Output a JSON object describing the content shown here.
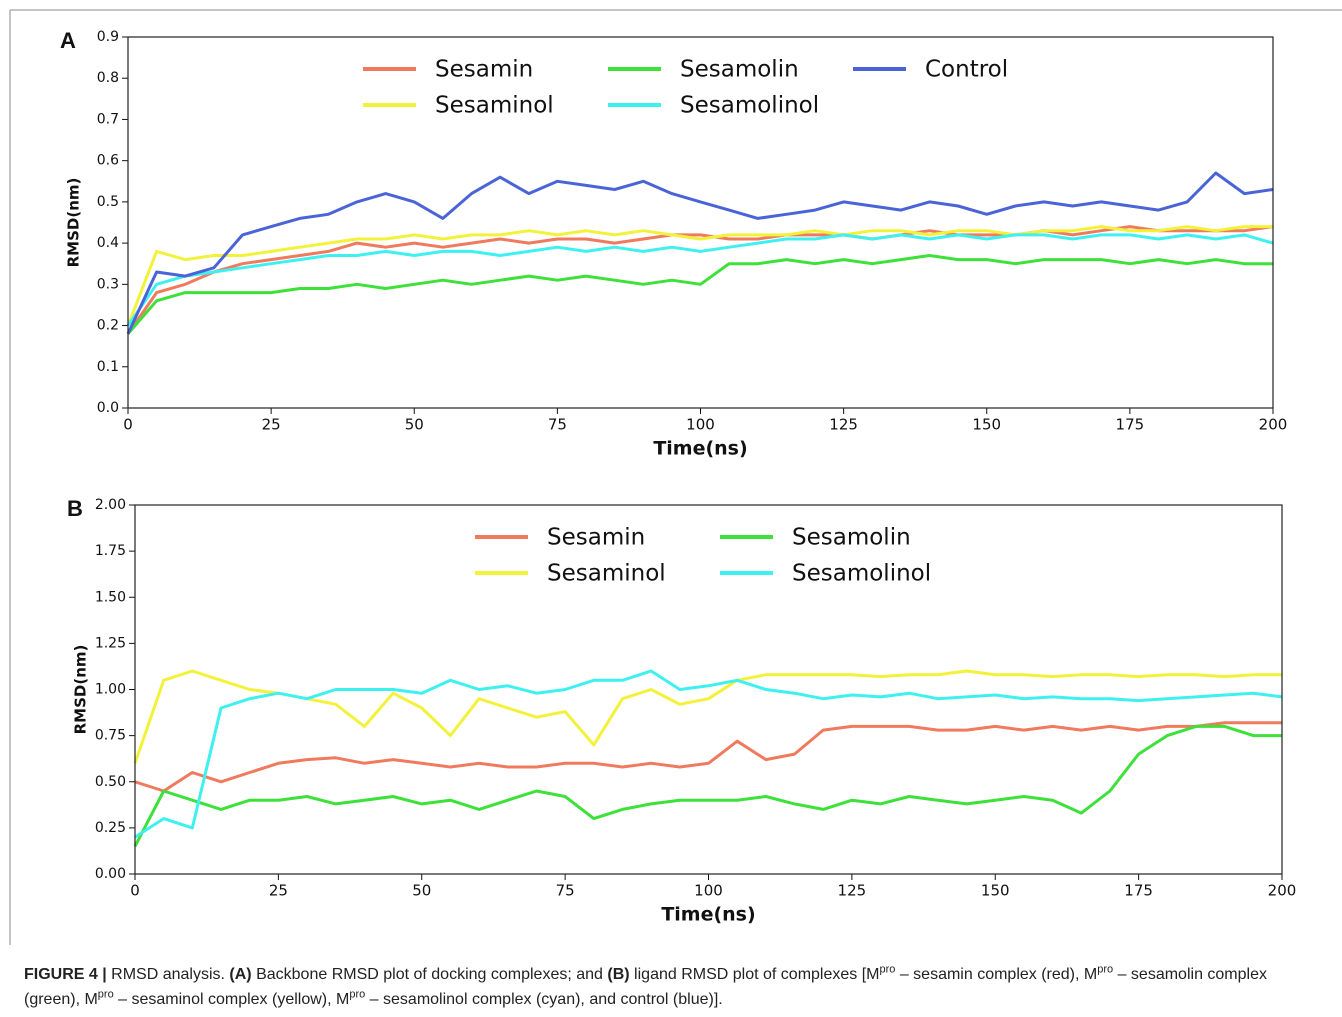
{
  "chart_data": [
    {
      "type": "line",
      "panel_label": "A",
      "xlabel": "Time(ns)",
      "ylabel": "RMSD(nm)",
      "xlim": [
        0,
        200
      ],
      "xticks": [
        0,
        25,
        50,
        75,
        100,
        125,
        150,
        175,
        200
      ],
      "ylim": [
        0,
        0.9
      ],
      "yticks": [
        {
          "value": 0,
          "label": "0.0"
        },
        0.1,
        0.2,
        0.3,
        0.4,
        0.5,
        0.6,
        0.7,
        0.8,
        0.9
      ],
      "legend_loc": "upper center",
      "legend_columns": 3,
      "x": [
        0,
        5,
        10,
        15,
        20,
        25,
        30,
        35,
        40,
        45,
        50,
        55,
        60,
        65,
        70,
        75,
        80,
        85,
        90,
        95,
        100,
        105,
        110,
        115,
        120,
        125,
        130,
        135,
        140,
        145,
        150,
        155,
        160,
        165,
        170,
        175,
        180,
        185,
        190,
        195,
        200
      ],
      "series": [
        {
          "name": "Sesamin",
          "color": "#f07a5e",
          "values": [
            0.18,
            0.28,
            0.3,
            0.33,
            0.35,
            0.36,
            0.37,
            0.38,
            0.4,
            0.39,
            0.4,
            0.39,
            0.4,
            0.41,
            0.4,
            0.41,
            0.41,
            0.4,
            0.41,
            0.42,
            0.42,
            0.41,
            0.41,
            0.42,
            0.42,
            0.42,
            0.41,
            0.42,
            0.43,
            0.42,
            0.42,
            0.42,
            0.43,
            0.42,
            0.43,
            0.44,
            0.43,
            0.43,
            0.43,
            0.43,
            0.44
          ]
        },
        {
          "name": "Sesaminol",
          "color": "#f2f23a",
          "values": [
            0.2,
            0.38,
            0.36,
            0.37,
            0.37,
            0.38,
            0.39,
            0.4,
            0.41,
            0.41,
            0.42,
            0.41,
            0.42,
            0.42,
            0.43,
            0.42,
            0.43,
            0.42,
            0.43,
            0.42,
            0.41,
            0.42,
            0.42,
            0.42,
            0.43,
            0.42,
            0.43,
            0.43,
            0.42,
            0.43,
            0.43,
            0.42,
            0.43,
            0.43,
            0.44,
            0.43,
            0.43,
            0.44,
            0.43,
            0.44,
            0.44
          ]
        },
        {
          "name": "Sesamolin",
          "color": "#3ee03a",
          "values": [
            0.18,
            0.26,
            0.28,
            0.28,
            0.28,
            0.28,
            0.29,
            0.29,
            0.3,
            0.29,
            0.3,
            0.31,
            0.3,
            0.31,
            0.32,
            0.31,
            0.32,
            0.31,
            0.3,
            0.31,
            0.3,
            0.35,
            0.35,
            0.36,
            0.35,
            0.36,
            0.35,
            0.36,
            0.37,
            0.36,
            0.36,
            0.35,
            0.36,
            0.36,
            0.36,
            0.35,
            0.36,
            0.35,
            0.36,
            0.35,
            0.35
          ]
        },
        {
          "name": "Sesamolinol",
          "color": "#3ef0f0",
          "values": [
            0.2,
            0.3,
            0.32,
            0.33,
            0.34,
            0.35,
            0.36,
            0.37,
            0.37,
            0.38,
            0.37,
            0.38,
            0.38,
            0.37,
            0.38,
            0.39,
            0.38,
            0.39,
            0.38,
            0.39,
            0.38,
            0.39,
            0.4,
            0.41,
            0.41,
            0.42,
            0.41,
            0.42,
            0.41,
            0.42,
            0.41,
            0.42,
            0.42,
            0.41,
            0.42,
            0.42,
            0.41,
            0.42,
            0.41,
            0.42,
            0.4
          ]
        },
        {
          "name": "Control",
          "color": "#4a64d8",
          "values": [
            0.18,
            0.33,
            0.32,
            0.34,
            0.42,
            0.44,
            0.46,
            0.47,
            0.5,
            0.52,
            0.5,
            0.46,
            0.52,
            0.56,
            0.52,
            0.55,
            0.54,
            0.53,
            0.55,
            0.52,
            0.5,
            0.48,
            0.46,
            0.47,
            0.48,
            0.5,
            0.49,
            0.48,
            0.5,
            0.49,
            0.47,
            0.49,
            0.5,
            0.49,
            0.5,
            0.49,
            0.48,
            0.5,
            0.57,
            0.52,
            0.53
          ]
        }
      ]
    },
    {
      "type": "line",
      "panel_label": "B",
      "xlabel": "Time(ns)",
      "ylabel": "RMSD(nm)",
      "xlim": [
        0,
        200
      ],
      "xticks": [
        0,
        25,
        50,
        75,
        100,
        125,
        150,
        175,
        200
      ],
      "ylim": [
        0,
        2
      ],
      "yticks": [
        {
          "value": 0,
          "label": "0.00"
        },
        0.25,
        {
          "value": 0.5,
          "label": "0.50"
        },
        0.75,
        {
          "value": 1,
          "label": "1.00"
        },
        1.25,
        {
          "value": 1.5,
          "label": "1.50"
        },
        1.75,
        {
          "value": 2,
          "label": "2.00"
        }
      ],
      "legend_loc": "upper center",
      "legend_columns": 2,
      "x": [
        0,
        5,
        10,
        15,
        20,
        25,
        30,
        35,
        40,
        45,
        50,
        55,
        60,
        65,
        70,
        75,
        80,
        85,
        90,
        95,
        100,
        105,
        110,
        115,
        120,
        125,
        130,
        135,
        140,
        145,
        150,
        155,
        160,
        165,
        170,
        175,
        180,
        185,
        190,
        195,
        200
      ],
      "series": [
        {
          "name": "Sesamin",
          "color": "#f07a5e",
          "values": [
            0.5,
            0.45,
            0.55,
            0.5,
            0.55,
            0.6,
            0.62,
            0.63,
            0.6,
            0.62,
            0.6,
            0.58,
            0.6,
            0.58,
            0.58,
            0.6,
            0.6,
            0.58,
            0.6,
            0.58,
            0.6,
            0.72,
            0.62,
            0.65,
            0.78,
            0.8,
            0.8,
            0.8,
            0.78,
            0.78,
            0.8,
            0.78,
            0.8,
            0.78,
            0.8,
            0.78,
            0.8,
            0.8,
            0.82,
            0.82,
            0.82
          ]
        },
        {
          "name": "Sesaminol",
          "color": "#f2f23a",
          "values": [
            0.6,
            1.05,
            1.1,
            1.05,
            1.0,
            0.98,
            0.95,
            0.92,
            0.8,
            0.98,
            0.9,
            0.75,
            0.95,
            0.9,
            0.85,
            0.88,
            0.7,
            0.95,
            1.0,
            0.92,
            0.95,
            1.05,
            1.08,
            1.08,
            1.08,
            1.08,
            1.07,
            1.08,
            1.08,
            1.1,
            1.08,
            1.08,
            1.07,
            1.08,
            1.08,
            1.07,
            1.08,
            1.08,
            1.07,
            1.08,
            1.08
          ]
        },
        {
          "name": "Sesamolin",
          "color": "#3ee03a",
          "values": [
            0.15,
            0.45,
            0.4,
            0.35,
            0.4,
            0.4,
            0.42,
            0.38,
            0.4,
            0.42,
            0.38,
            0.4,
            0.35,
            0.4,
            0.45,
            0.42,
            0.3,
            0.35,
            0.38,
            0.4,
            0.4,
            0.4,
            0.42,
            0.38,
            0.35,
            0.4,
            0.38,
            0.42,
            0.4,
            0.38,
            0.4,
            0.42,
            0.4,
            0.33,
            0.45,
            0.65,
            0.75,
            0.8,
            0.8,
            0.75,
            0.75
          ]
        },
        {
          "name": "Sesamolinol",
          "color": "#3ef0f0",
          "values": [
            0.2,
            0.3,
            0.25,
            0.9,
            0.95,
            0.98,
            0.95,
            1.0,
            1.0,
            1.0,
            0.98,
            1.05,
            1.0,
            1.02,
            0.98,
            1.0,
            1.05,
            1.05,
            1.1,
            1.0,
            1.02,
            1.05,
            1.0,
            0.98,
            0.95,
            0.97,
            0.96,
            0.98,
            0.95,
            0.96,
            0.97,
            0.95,
            0.96,
            0.95,
            0.95,
            0.94,
            0.95,
            0.96,
            0.97,
            0.98,
            0.96
          ]
        }
      ]
    }
  ],
  "caption": [
    "FIGURE 4 |",
    " RMSD analysis. ",
    "(A)",
    " Backbone RMSD plot of docking complexes; and ",
    "(B)",
    " ligand RMSD plot of complexes [M",
    "pro",
    " – sesamin complex (red), M",
    "pro",
    " – sesamolin complex (green), M",
    "pro",
    " – sesaminol complex (yellow), M",
    "pro",
    " – sesamolinol complex (cyan), and control (blue)]."
  ]
}
